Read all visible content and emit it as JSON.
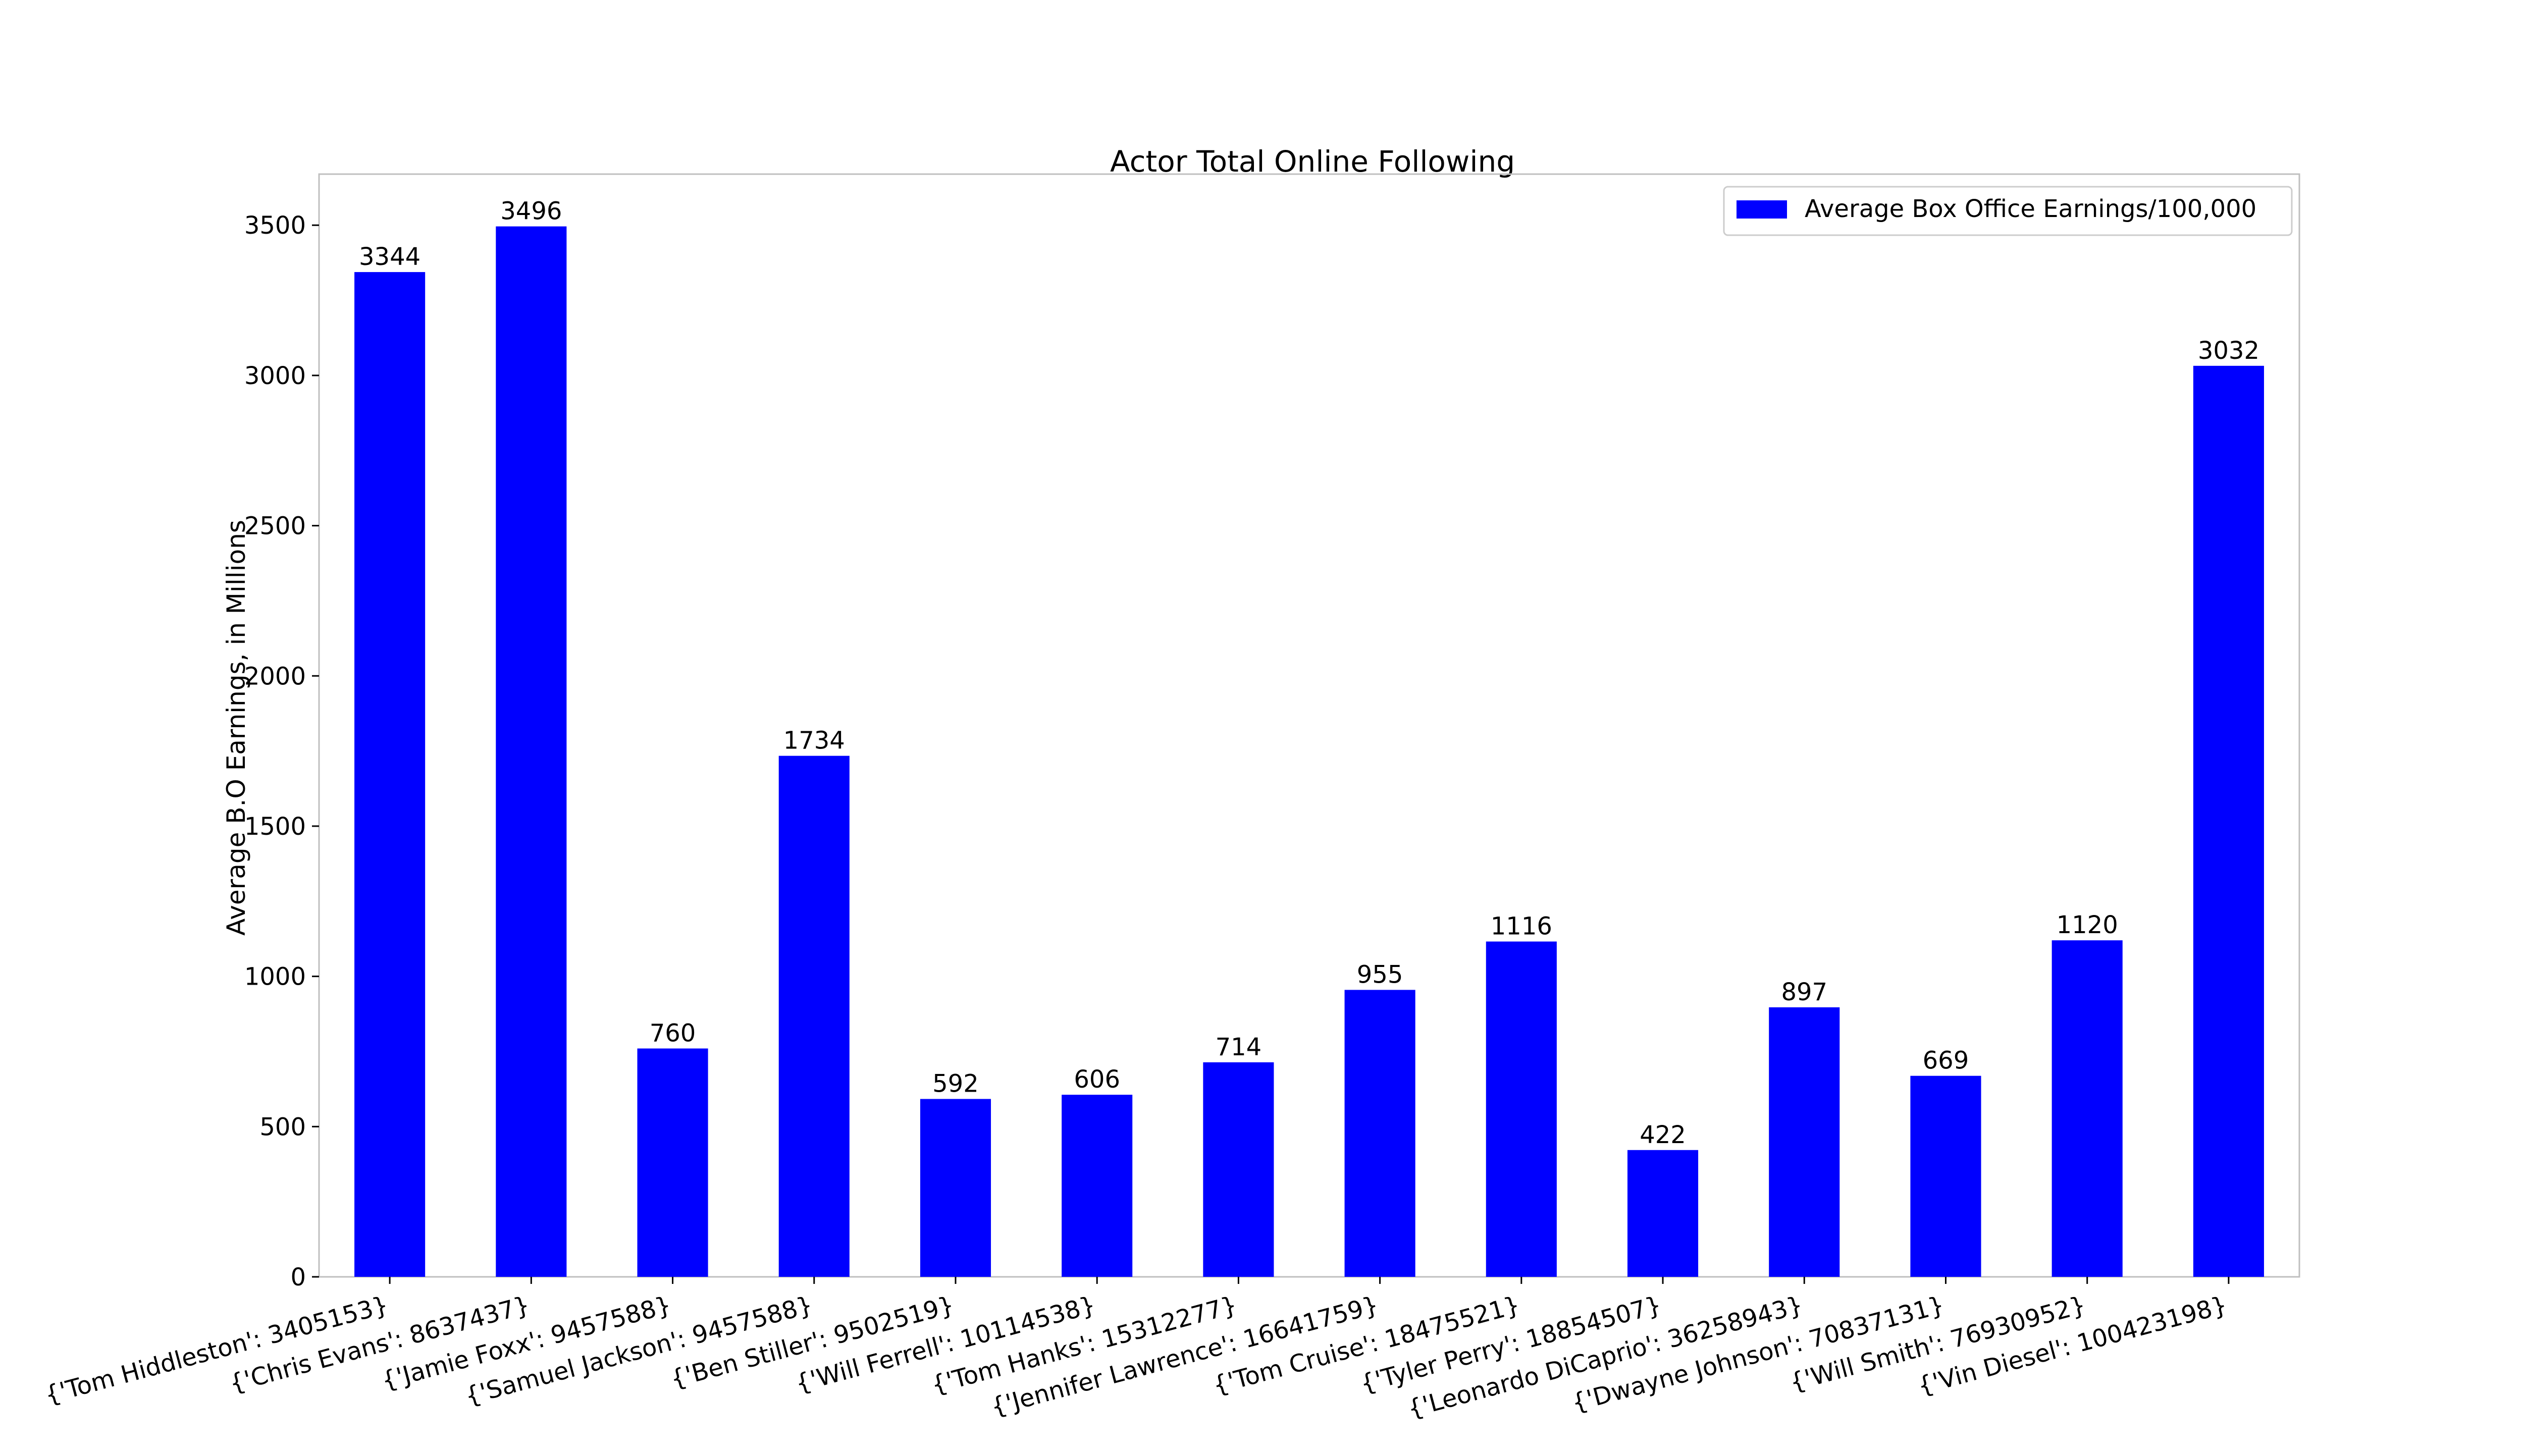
{
  "chart_data": {
    "type": "bar",
    "title": "Actor Total Online Following",
    "xlabel": "",
    "ylabel": "Average B.O Earnings, in Millions",
    "categories": [
      "{'Tom Hiddleston': 3405153}",
      "{'Chris Evans': 8637437}",
      "{'Jamie Foxx': 9457588}",
      "{'Samuel Jackson': 9457588}",
      "{'Ben Stiller': 9502519}",
      "{'Will Ferrell': 10114538}",
      "{'Tom Hanks': 15312277}",
      "{'Jennifer Lawrence': 16641759}",
      "{'Tom Cruise': 18475521}",
      "{'Tyler Perry': 18854507}",
      "{'Leonardo DiCaprio': 36258943}",
      "{'Dwayne Johnson': 70837131}",
      "{'Will Smith': 76930952}",
      "{'Vin Diesel': 100423198}"
    ],
    "series": [
      {
        "name": "Average Box Office Earnings/100,000",
        "values": [
          3344,
          3496,
          760,
          1734,
          592,
          606,
          714,
          955,
          1116,
          422,
          897,
          669,
          1120,
          3032
        ],
        "color": "#0000ff"
      }
    ],
    "data_labels": [
      "3344",
      "3496",
      "760",
      "1734",
      "592",
      "606",
      "714",
      "955",
      "1116",
      "422",
      "897",
      "669",
      "1120",
      "3032"
    ],
    "yticks": [
      0,
      500,
      1000,
      1500,
      2000,
      2500,
      3000,
      3500
    ],
    "ytick_labels": [
      "0",
      "500",
      "1000",
      "1500",
      "2000",
      "2500",
      "3000",
      "3500"
    ],
    "ylim": [
      0,
      3670
    ],
    "grid": false,
    "legend_position": "top-right",
    "xtick_rotation_deg": -15
  }
}
